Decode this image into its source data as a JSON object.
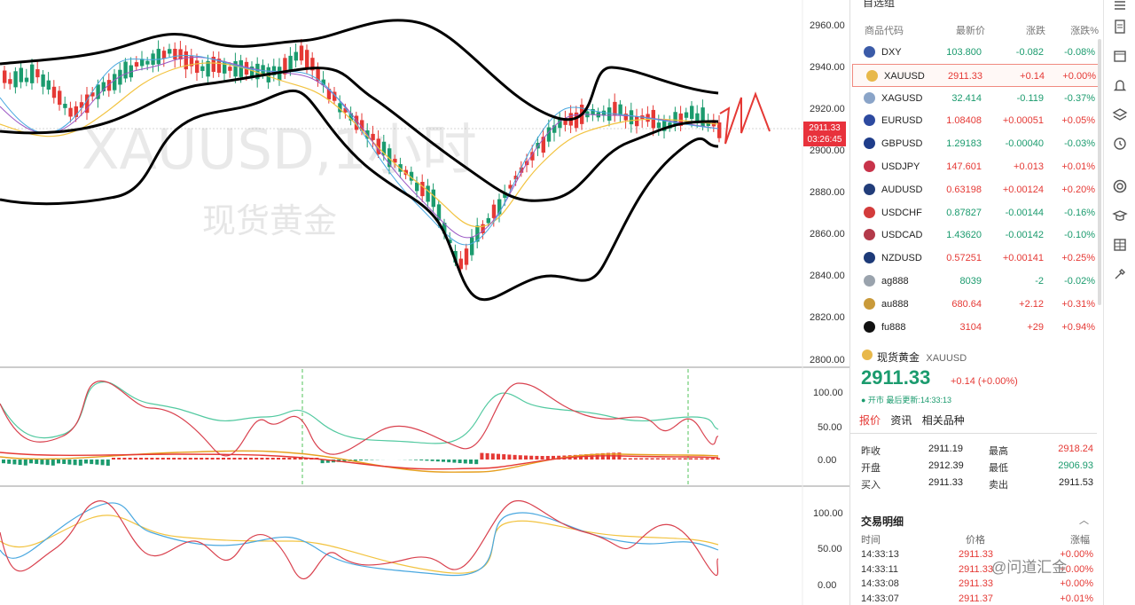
{
  "chart": {
    "watermark_symbol": "XAUUSD,1小时",
    "watermark_name": "现货黄金",
    "price_axis": [
      "2960.00",
      "2940.00",
      "2920.00",
      "2900.00",
      "2880.00",
      "2860.00",
      "2840.00",
      "2820.00",
      "2800.00"
    ],
    "current_price_label": "2911.33",
    "countdown_label": "03:26:45",
    "macd_axis": [
      "100.00",
      "50.00",
      "0.00"
    ],
    "kdj_axis": [
      "100.00",
      "50.00",
      "0.00"
    ],
    "colors": {
      "up": "#e53935",
      "down": "#1b9b6e",
      "band": "#000000"
    }
  },
  "watchlist": {
    "title": "自选组",
    "headers": {
      "symbol": "商品代码",
      "last": "最新价",
      "change": "涨跌",
      "pct": "涨跌%"
    },
    "rows": [
      {
        "symbol": "DXY",
        "last": "103.800",
        "change": "-0.082",
        "pct": "-0.08%",
        "dir": "down",
        "flag": "us-flag-icon",
        "color": "#3b5ba8"
      },
      {
        "symbol": "XAUUSD",
        "last": "2911.33",
        "change": "+0.14",
        "pct": "+0.00%",
        "dir": "up",
        "flag": "gold-coin-icon",
        "color": "#e8b84a",
        "selected": true
      },
      {
        "symbol": "XAGUSD",
        "last": "32.414",
        "change": "-0.119",
        "pct": "-0.37%",
        "dir": "down",
        "flag": "silver-coin-icon",
        "color": "#8aa4c8"
      },
      {
        "symbol": "EURUSD",
        "last": "1.08408",
        "change": "+0.00051",
        "pct": "+0.05%",
        "dir": "up",
        "flag": "eu-flag-icon",
        "color": "#2d4aa0"
      },
      {
        "symbol": "GBPUSD",
        "last": "1.29183",
        "change": "-0.00040",
        "pct": "-0.03%",
        "dir": "down",
        "flag": "uk-flag-icon",
        "color": "#1f3d8a"
      },
      {
        "symbol": "USDJPY",
        "last": "147.601",
        "change": "+0.013",
        "pct": "+0.01%",
        "dir": "up",
        "flag": "us-flag-icon",
        "color": "#c8334a"
      },
      {
        "symbol": "AUDUSD",
        "last": "0.63198",
        "change": "+0.00124",
        "pct": "+0.20%",
        "dir": "up",
        "flag": "au-flag-icon",
        "color": "#223d7a"
      },
      {
        "symbol": "USDCHF",
        "last": "0.87827",
        "change": "-0.00144",
        "pct": "-0.16%",
        "dir": "down",
        "flag": "us-flag-icon",
        "color": "#d33b3b"
      },
      {
        "symbol": "USDCAD",
        "last": "1.43620",
        "change": "-0.00142",
        "pct": "-0.10%",
        "dir": "down",
        "flag": "us-flag-icon",
        "color": "#b33a4a"
      },
      {
        "symbol": "NZDUSD",
        "last": "0.57251",
        "change": "+0.00141",
        "pct": "+0.25%",
        "dir": "up",
        "flag": "nz-flag-icon",
        "color": "#1d3a78"
      },
      {
        "symbol": "ag888",
        "last": "8039",
        "change": "-2",
        "pct": "-0.02%",
        "dir": "down",
        "flag": "silver-coin-icon",
        "color": "#9aa3ad"
      },
      {
        "symbol": "au888",
        "last": "680.64",
        "change": "+2.12",
        "pct": "+0.31%",
        "dir": "up",
        "flag": "gold-coin-icon",
        "color": "#c99a3a"
      },
      {
        "symbol": "fu888",
        "last": "3104",
        "change": "+29",
        "pct": "+0.94%",
        "dir": "up",
        "flag": "oil-drop-icon",
        "color": "#111111"
      }
    ]
  },
  "detail": {
    "name": "现货黄金",
    "symbol": "XAUUSD",
    "price": "2911.33",
    "change": "+0.14 (+0.00%)",
    "status": "● 开市 最后更新:14:33:13",
    "tabs": [
      "报价",
      "资讯",
      "相关品种"
    ],
    "quotes": [
      {
        "l1": "昨收",
        "v1": "2911.19",
        "l2": "最高",
        "v2": "2918.24",
        "d2": "up"
      },
      {
        "l1": "开盘",
        "v1": "2912.39",
        "l2": "最低",
        "v2": "2906.93",
        "d2": "down"
      },
      {
        "l1": "买入",
        "v1": "2911.33",
        "l2": "卖出",
        "v2": "2911.53",
        "d2": "neutral"
      }
    ]
  },
  "trades": {
    "title": "交易明细",
    "headers": {
      "time": "时间",
      "price": "价格",
      "pct": "涨幅"
    },
    "rows": [
      {
        "time": "14:33:13",
        "price": "2911.33",
        "pct": "+0.00%"
      },
      {
        "time": "14:33:11",
        "price": "2911.33",
        "pct": "+0.00%"
      },
      {
        "time": "14:33:08",
        "price": "2911.33",
        "pct": "+0.00%"
      },
      {
        "time": "14:33:07",
        "price": "2911.37",
        "pct": "+0.01%"
      }
    ]
  },
  "watermark_text": "@问道汇金"
}
